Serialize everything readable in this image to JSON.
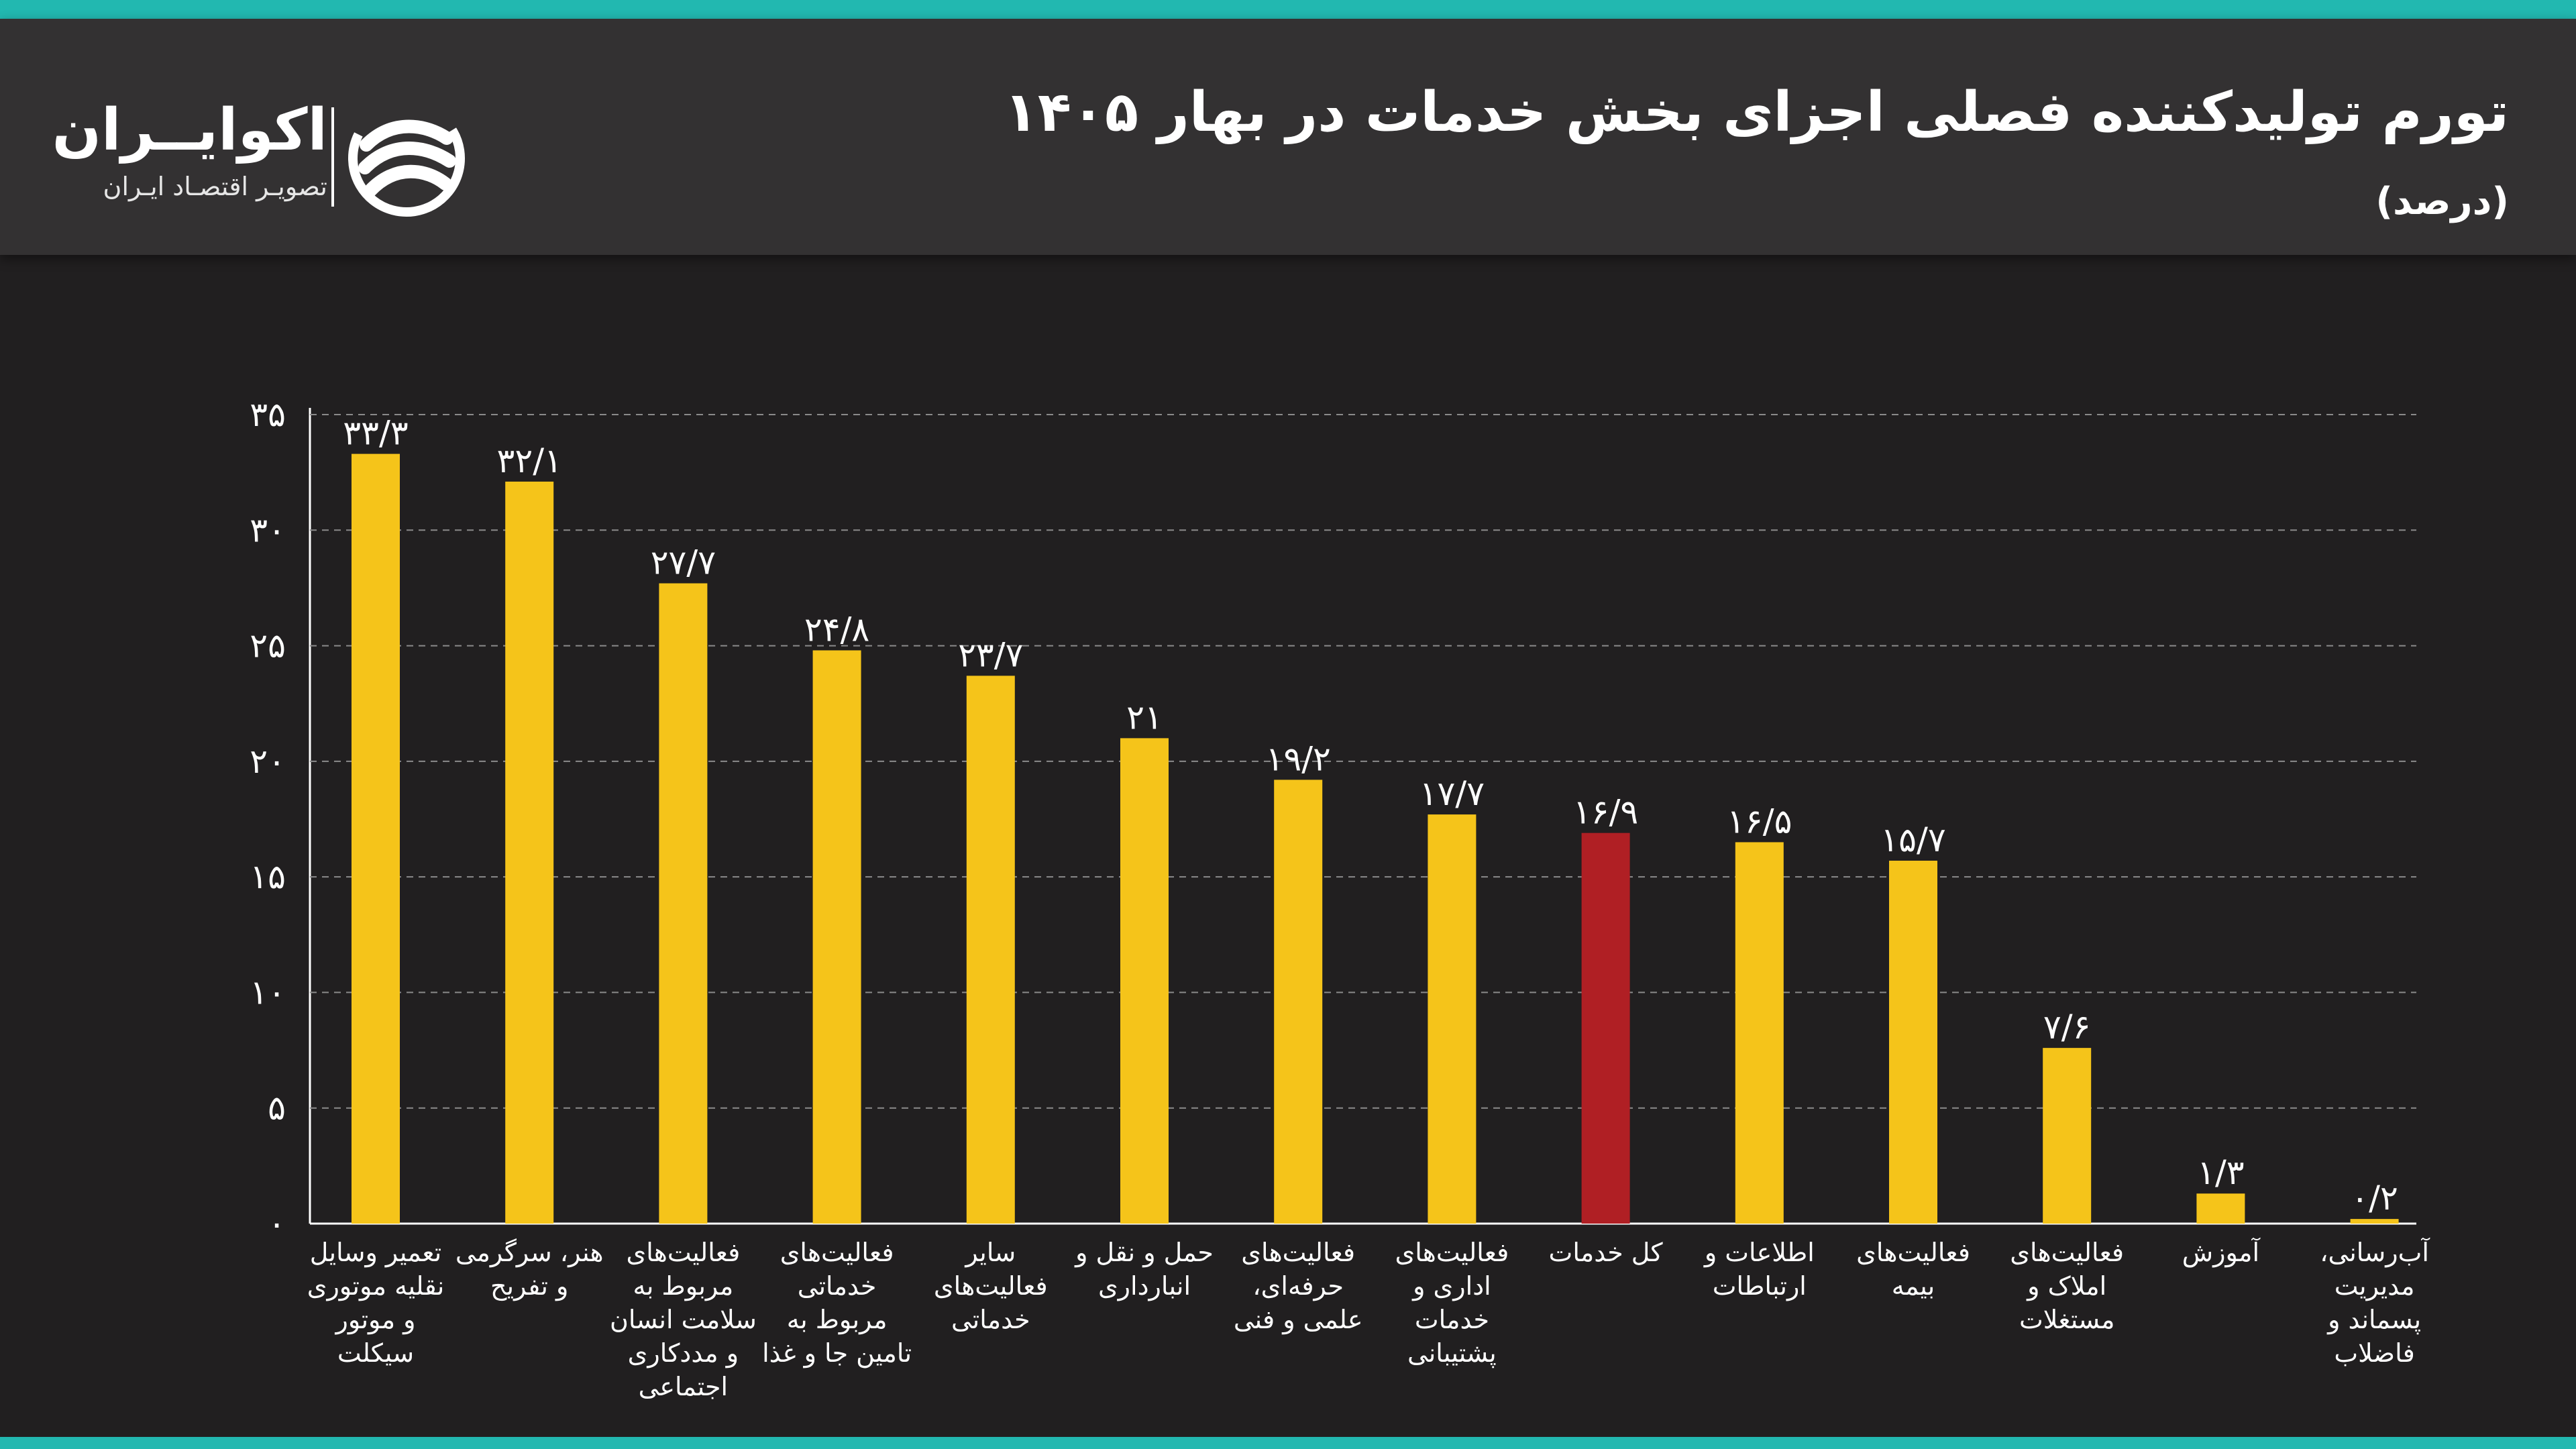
{
  "header": {
    "title": "تورم تولیدکننده فصلی اجزای بخش خدمات در بهار ۱۴۰۵",
    "subtitle": "(درصد)"
  },
  "logo": {
    "name": "اکوایــران",
    "tagline": "تصویـر اقتصـاد ایـران",
    "icon": "ecoiran-swirl-icon"
  },
  "colors": {
    "bar": "#f5c41a",
    "highlight": "#b01f24",
    "accent": "#22b8b0"
  },
  "chart_data": {
    "type": "bar",
    "ylim": [
      0,
      35
    ],
    "yticks": [
      0,
      5,
      10,
      15,
      20,
      25,
      30,
      35
    ],
    "ytick_labels": [
      "۰",
      "۵",
      "۱۰",
      "۱۵",
      "۲۰",
      "۲۵",
      "۳۰",
      "۳۵"
    ],
    "grid": true,
    "categories": [
      "تعمیر وسایل نقلیه موتوری و موتور سیکلت",
      "هنر، سرگرمی و تفریح",
      "فعالیت‌های مربوط به سلامت انسان و مددکاری اجتماعی",
      "فعالیت‌های خدماتی مربوط به تامین جا و غذا",
      "سایر فعالیت‌های خدماتی",
      "حمل و نقل و انبارداری",
      "فعالیت‌های حرفه‌ای، علمی و فنی",
      "فعالیت‌های اداری و خدمات پشتیبانی",
      "کل خدمات",
      "اطلاعات و ارتباطات",
      "فعالیت‌های بیمه",
      "فعالیت‌های املاک و مستغلات",
      "آموزش",
      "آب‌رسانی، مدیریت پسماند و فاضلاب"
    ],
    "values": [
      33.3,
      32.1,
      27.7,
      24.8,
      23.7,
      21,
      19.2,
      17.7,
      16.9,
      16.5,
      15.7,
      7.6,
      1.3,
      0.2
    ],
    "value_labels": [
      "۳۳/۳",
      "۳۲/۱",
      "۲۷/۷",
      "۲۴/۸",
      "۲۳/۷",
      "۲۱",
      "۱۹/۲",
      "۱۷/۷",
      "۱۶/۹",
      "۱۶/۵",
      "۱۵/۷",
      "۷/۶",
      "۱/۳",
      "۰/۲"
    ],
    "highlight_index": 8
  }
}
